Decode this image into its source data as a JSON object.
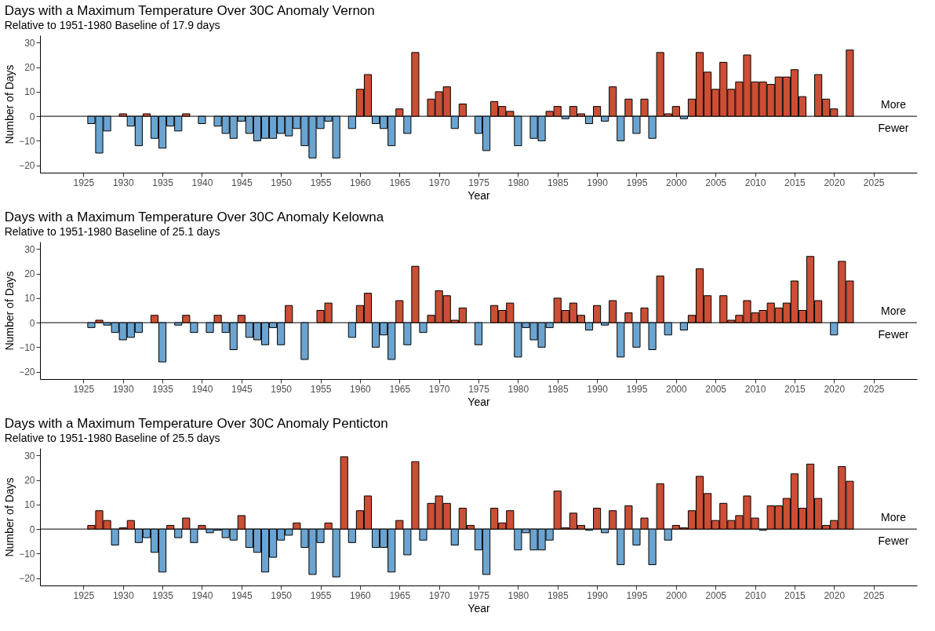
{
  "chart_data": [
    {
      "type": "bar",
      "title": "Days with a Maximum Temperature Over 30C Anomaly Vernon",
      "subtitle": "Relative to 1951-1980 Baseline of 17.9 days",
      "xlabel": "Year",
      "ylabel": "Number of Days",
      "x": [
        1926,
        1927,
        1928,
        1929,
        1930,
        1931,
        1932,
        1933,
        1934,
        1935,
        1936,
        1937,
        1938,
        1939,
        1940,
        1941,
        1942,
        1943,
        1944,
        1945,
        1946,
        1947,
        1948,
        1949,
        1950,
        1951,
        1952,
        1953,
        1954,
        1955,
        1956,
        1957,
        1958,
        1959,
        1960,
        1961,
        1962,
        1963,
        1964,
        1965,
        1966,
        1967,
        1968,
        1969,
        1970,
        1971,
        1972,
        1973,
        1974,
        1975,
        1976,
        1977,
        1978,
        1979,
        1980,
        1981,
        1982,
        1983,
        1984,
        1985,
        1986,
        1987,
        1988,
        1989,
        1990,
        1991,
        1992,
        1993,
        1994,
        1995,
        1996,
        1997,
        1998,
        1999,
        2000,
        2001,
        2002,
        2003,
        2004,
        2005,
        2006,
        2007,
        2008,
        2009,
        2010,
        2011,
        2012,
        2013,
        2014,
        2015,
        2016,
        2017,
        2018,
        2019,
        2020,
        2021,
        2022
      ],
      "values": [
        -3,
        -15,
        -6,
        null,
        1,
        -4,
        -12,
        1,
        -9,
        -13,
        -4,
        -6,
        1,
        null,
        -3,
        null,
        -4,
        -7,
        -9,
        -2,
        -7,
        -10,
        -9,
        -9,
        -7,
        -8,
        -5,
        -12,
        -17,
        -5,
        -2,
        -17,
        null,
        -5,
        11,
        17,
        -3,
        -5,
        -12,
        3,
        -7,
        26,
        null,
        7,
        10,
        12,
        -5,
        5,
        null,
        -7,
        -14,
        6,
        4,
        2,
        -12,
        null,
        -9,
        -10,
        2,
        4,
        -1,
        4,
        1,
        -3,
        4,
        -2,
        12,
        -10,
        7,
        -7,
        7,
        -9,
        26,
        1,
        4,
        -1,
        7,
        26,
        18,
        11,
        22,
        11,
        14,
        25,
        14,
        14,
        13,
        16,
        16,
        19,
        8,
        null,
        17,
        7,
        3,
        null,
        27
      ],
      "colors": [
        "#6ba4d0",
        "#6ba4d0",
        "#6ba4d0",
        null,
        "#cb4e35",
        "#6ba4d0",
        "#6ba4d0",
        "#cb4e35",
        "#6ba4d0",
        "#6ba4d0",
        "#6ba4d0",
        "#6ba4d0",
        "#cb4e35",
        null,
        "#6ba4d0",
        null,
        "#6ba4d0",
        "#6ba4d0",
        "#6ba4d0",
        "#6ba4d0",
        "#6ba4d0",
        "#6ba4d0",
        "#6ba4d0",
        "#6ba4d0",
        "#6ba4d0",
        "#6ba4d0",
        "#6ba4d0",
        "#6ba4d0",
        "#6ba4d0",
        "#6ba4d0",
        "#6ba4d0",
        "#6ba4d0",
        null,
        "#6ba4d0",
        "#cb4e35",
        "#cb4e35",
        "#6ba4d0",
        "#6ba4d0",
        "#6ba4d0",
        "#cb4e35",
        "#6ba4d0",
        "#cb4e35",
        null,
        "#cb4e35",
        "#cb4e35",
        "#cb4e35",
        "#6ba4d0",
        "#cb4e35",
        null,
        "#6ba4d0",
        "#6ba4d0",
        "#cb4e35",
        "#cb4e35",
        "#cb4e35",
        "#6ba4d0",
        null,
        "#6ba4d0",
        "#6ba4d0",
        "#cb4e35",
        "#cb4e35",
        "#6ba4d0",
        "#cb4e35",
        "#cb4e35",
        "#6ba4d0",
        "#cb4e35",
        "#6ba4d0",
        "#cb4e35",
        "#6ba4d0",
        "#cb4e35",
        "#6ba4d0",
        "#cb4e35",
        "#6ba4d0",
        "#cb4e35",
        "#cb4e35",
        "#cb4e35",
        "#6ba4d0",
        "#cb4e35",
        "#cb4e35",
        "#cb4e35",
        "#cb4e35",
        "#cb4e35",
        "#cb4e35",
        "#cb4e35",
        "#cb4e35",
        "#cb4e35",
        "#cb4e35",
        "#cb4e35",
        "#cb4e35",
        "#cb4e35",
        "#cb4e35",
        "#cb4e35",
        null,
        "#cb4e35",
        "#cb4e35",
        "#cb4e35",
        null,
        "#cb4e35"
      ],
      "xlim": [
        1920,
        2030
      ],
      "xticks": [
        1925,
        1930,
        1935,
        1940,
        1945,
        1950,
        1955,
        1960,
        1965,
        1970,
        1975,
        1980,
        1985,
        1990,
        1995,
        2000,
        2005,
        2010,
        2015,
        2020,
        2025
      ],
      "ylim": [
        -23,
        33
      ],
      "yticks": [
        -20,
        -10,
        0,
        10,
        20,
        30
      ],
      "grid": false,
      "ref_lines": [
        {
          "axis": "y",
          "value": 0,
          "color": "#000000"
        }
      ],
      "annotations": [
        "More",
        "Fewer"
      ]
    },
    {
      "type": "bar",
      "title": "Days with a Maximum Temperature Over 30C Anomaly Kelowna",
      "subtitle": "Relative to 1951-1980 Baseline of 25.1 days",
      "xlabel": "Year",
      "ylabel": "Number of Days",
      "x": [
        1926,
        1927,
        1928,
        1929,
        1930,
        1931,
        1932,
        1933,
        1934,
        1935,
        1936,
        1937,
        1938,
        1939,
        1940,
        1941,
        1942,
        1943,
        1944,
        1945,
        1946,
        1947,
        1948,
        1949,
        1950,
        1951,
        1952,
        1953,
        1954,
        1955,
        1956,
        1957,
        1958,
        1959,
        1960,
        1961,
        1962,
        1963,
        1964,
        1965,
        1966,
        1967,
        1968,
        1969,
        1970,
        1971,
        1972,
        1973,
        1974,
        1975,
        1976,
        1977,
        1978,
        1979,
        1980,
        1981,
        1982,
        1983,
        1984,
        1985,
        1986,
        1987,
        1988,
        1989,
        1990,
        1991,
        1992,
        1993,
        1994,
        1995,
        1996,
        1997,
        1998,
        1999,
        2000,
        2001,
        2002,
        2003,
        2004,
        2005,
        2006,
        2007,
        2008,
        2009,
        2010,
        2011,
        2012,
        2013,
        2014,
        2015,
        2016,
        2017,
        2018,
        2019,
        2020,
        2021,
        2022
      ],
      "values": [
        -2,
        1,
        -1,
        -4,
        -7,
        -6,
        -4,
        null,
        3,
        -16,
        null,
        -1,
        3,
        -4,
        null,
        -4,
        3,
        -4,
        -11,
        3,
        -6,
        -7,
        -9,
        -2,
        -9,
        7,
        null,
        -15,
        null,
        5,
        8,
        null,
        null,
        -6,
        7,
        12,
        -10,
        -5,
        -15,
        9,
        -9,
        23,
        -4,
        3,
        13,
        11,
        1,
        6,
        null,
        -9,
        null,
        7,
        5,
        8,
        -14,
        -2,
        -7,
        -10,
        -2,
        10,
        5,
        8,
        3,
        -3,
        7,
        -1,
        9,
        -14,
        4,
        -10,
        6,
        -11,
        19,
        -5,
        null,
        -3,
        3,
        22,
        11,
        null,
        11,
        1,
        3,
        9,
        4,
        5,
        8,
        6,
        8,
        17,
        5,
        27,
        9,
        null,
        -5,
        25,
        17
      ],
      "colors": [
        "#6ba4d0",
        "#cb4e35",
        "#6ba4d0",
        "#6ba4d0",
        "#6ba4d0",
        "#6ba4d0",
        "#6ba4d0",
        null,
        "#cb4e35",
        "#6ba4d0",
        null,
        "#6ba4d0",
        "#cb4e35",
        "#6ba4d0",
        null,
        "#6ba4d0",
        "#cb4e35",
        "#6ba4d0",
        "#6ba4d0",
        "#cb4e35",
        "#6ba4d0",
        "#6ba4d0",
        "#6ba4d0",
        "#6ba4d0",
        "#6ba4d0",
        "#cb4e35",
        null,
        "#6ba4d0",
        null,
        "#cb4e35",
        "#cb4e35",
        null,
        null,
        "#6ba4d0",
        "#cb4e35",
        "#cb4e35",
        "#6ba4d0",
        "#6ba4d0",
        "#6ba4d0",
        "#cb4e35",
        "#6ba4d0",
        "#cb4e35",
        "#6ba4d0",
        "#cb4e35",
        "#cb4e35",
        "#cb4e35",
        "#cb4e35",
        "#cb4e35",
        null,
        "#6ba4d0",
        null,
        "#cb4e35",
        "#cb4e35",
        "#cb4e35",
        "#6ba4d0",
        "#6ba4d0",
        "#6ba4d0",
        "#6ba4d0",
        "#6ba4d0",
        "#cb4e35",
        "#cb4e35",
        "#cb4e35",
        "#cb4e35",
        "#6ba4d0",
        "#cb4e35",
        "#6ba4d0",
        "#cb4e35",
        "#6ba4d0",
        "#cb4e35",
        "#6ba4d0",
        "#cb4e35",
        "#6ba4d0",
        "#cb4e35",
        "#6ba4d0",
        null,
        "#6ba4d0",
        "#cb4e35",
        "#cb4e35",
        "#cb4e35",
        null,
        "#cb4e35",
        "#cb4e35",
        "#cb4e35",
        "#cb4e35",
        "#cb4e35",
        "#cb4e35",
        "#cb4e35",
        "#cb4e35",
        "#cb4e35",
        "#cb4e35",
        "#cb4e35",
        "#cb4e35",
        "#cb4e35",
        null,
        "#6ba4d0",
        "#cb4e35",
        "#cb4e35"
      ],
      "xlim": [
        1920,
        2030
      ],
      "xticks": [
        1925,
        1930,
        1935,
        1940,
        1945,
        1950,
        1955,
        1960,
        1965,
        1970,
        1975,
        1980,
        1985,
        1990,
        1995,
        2000,
        2005,
        2010,
        2015,
        2020,
        2025
      ],
      "ylim": [
        -23,
        33
      ],
      "yticks": [
        -20,
        -10,
        0,
        10,
        20,
        30
      ],
      "grid": false,
      "ref_lines": [
        {
          "axis": "y",
          "value": 0,
          "color": "#000000"
        }
      ],
      "annotations": [
        "More",
        "Fewer"
      ]
    },
    {
      "type": "bar",
      "title": "Days with a Maximum Temperature Over 30C Anomaly Penticton",
      "subtitle": "Relative to 1951-1980 Baseline of 25.5 days",
      "xlabel": "Year",
      "ylabel": "Number of Days",
      "x": [
        1926,
        1927,
        1928,
        1929,
        1930,
        1931,
        1932,
        1933,
        1934,
        1935,
        1936,
        1937,
        1938,
        1939,
        1940,
        1941,
        1942,
        1943,
        1944,
        1945,
        1946,
        1947,
        1948,
        1949,
        1950,
        1951,
        1952,
        1953,
        1954,
        1955,
        1956,
        1957,
        1958,
        1959,
        1960,
        1961,
        1962,
        1963,
        1964,
        1965,
        1966,
        1967,
        1968,
        1969,
        1970,
        1971,
        1972,
        1973,
        1974,
        1975,
        1976,
        1977,
        1978,
        1979,
        1980,
        1981,
        1982,
        1983,
        1984,
        1985,
        1986,
        1987,
        1988,
        1989,
        1990,
        1991,
        1992,
        1993,
        1994,
        1995,
        1996,
        1997,
        1998,
        1999,
        2000,
        2001,
        2002,
        2003,
        2004,
        2005,
        2006,
        2007,
        2008,
        2009,
        2010,
        2011,
        2012,
        2013,
        2014,
        2015,
        2016,
        2017,
        2018,
        2019,
        2020,
        2021,
        2022
      ],
      "values": [
        1.5,
        7.5,
        3.5,
        -6.5,
        0.5,
        3.5,
        -5.5,
        -3.5,
        -9.5,
        -17.5,
        1.5,
        -3.5,
        4.5,
        -5.5,
        1.5,
        -1.5,
        -0.5,
        -3.5,
        -4.5,
        5.5,
        -7.5,
        -9.5,
        -17.5,
        -11.5,
        -4.5,
        -2.5,
        2.5,
        -7.5,
        -18.5,
        -5.5,
        2.5,
        -19.5,
        29.5,
        -5.5,
        7.5,
        13.5,
        -7.5,
        -7.5,
        -17.5,
        3.5,
        -10.5,
        27.5,
        -4.5,
        10.5,
        13.5,
        10.5,
        -6.5,
        8.5,
        1.5,
        -8.5,
        -18.5,
        8.5,
        2.5,
        7.5,
        -8.5,
        -1.5,
        -8.5,
        -8.5,
        -4.5,
        15.5,
        0.5,
        6.5,
        1.5,
        -0.5,
        8.5,
        -1.5,
        7.5,
        -14.5,
        9.5,
        -6.5,
        4.5,
        -14.5,
        18.5,
        -4.5,
        1.5,
        0.5,
        7.5,
        21.5,
        14.5,
        3.5,
        10.5,
        3.5,
        5.5,
        13.5,
        4.5,
        -0.5,
        9.5,
        9.5,
        12.5,
        22.5,
        8.5,
        26.5,
        12.5,
        1.5,
        3.5,
        25.5,
        19.5
      ],
      "colors": [
        "#cb4e35",
        "#cb4e35",
        "#cb4e35",
        "#6ba4d0",
        "#cb4e35",
        "#cb4e35",
        "#6ba4d0",
        "#6ba4d0",
        "#6ba4d0",
        "#6ba4d0",
        "#cb4e35",
        "#6ba4d0",
        "#cb4e35",
        "#6ba4d0",
        "#cb4e35",
        "#6ba4d0",
        "#6ba4d0",
        "#6ba4d0",
        "#6ba4d0",
        "#cb4e35",
        "#6ba4d0",
        "#6ba4d0",
        "#6ba4d0",
        "#6ba4d0",
        "#6ba4d0",
        "#6ba4d0",
        "#cb4e35",
        "#6ba4d0",
        "#6ba4d0",
        "#6ba4d0",
        "#cb4e35",
        "#6ba4d0",
        "#cb4e35",
        "#6ba4d0",
        "#cb4e35",
        "#cb4e35",
        "#6ba4d0",
        "#6ba4d0",
        "#6ba4d0",
        "#cb4e35",
        "#6ba4d0",
        "#cb4e35",
        "#6ba4d0",
        "#cb4e35",
        "#cb4e35",
        "#cb4e35",
        "#6ba4d0",
        "#cb4e35",
        "#cb4e35",
        "#6ba4d0",
        "#6ba4d0",
        "#cb4e35",
        "#cb4e35",
        "#cb4e35",
        "#6ba4d0",
        "#6ba4d0",
        "#6ba4d0",
        "#6ba4d0",
        "#6ba4d0",
        "#cb4e35",
        "#cb4e35",
        "#cb4e35",
        "#cb4e35",
        "#6ba4d0",
        "#cb4e35",
        "#6ba4d0",
        "#cb4e35",
        "#6ba4d0",
        "#cb4e35",
        "#6ba4d0",
        "#cb4e35",
        "#6ba4d0",
        "#cb4e35",
        "#6ba4d0",
        "#cb4e35",
        "#cb4e35",
        "#cb4e35",
        "#cb4e35",
        "#cb4e35",
        "#cb4e35",
        "#cb4e35",
        "#cb4e35",
        "#cb4e35",
        "#cb4e35",
        "#cb4e35",
        "#6ba4d0",
        "#cb4e35",
        "#cb4e35",
        "#cb4e35",
        "#cb4e35",
        "#cb4e35",
        "#cb4e35",
        "#cb4e35",
        "#cb4e35",
        "#cb4e35",
        "#cb4e35",
        "#cb4e35"
      ],
      "xlim": [
        1920,
        2030
      ],
      "xticks": [
        1925,
        1930,
        1935,
        1940,
        1945,
        1950,
        1955,
        1960,
        1965,
        1970,
        1975,
        1980,
        1985,
        1990,
        1995,
        2000,
        2005,
        2010,
        2015,
        2020,
        2025
      ],
      "ylim": [
        -23,
        33
      ],
      "yticks": [
        -20,
        -10,
        0,
        10,
        20,
        30
      ],
      "grid": false,
      "ref_lines": [
        {
          "axis": "y",
          "value": 0,
          "color": "#000000"
        }
      ],
      "annotations": [
        "More",
        "Fewer"
      ]
    }
  ]
}
